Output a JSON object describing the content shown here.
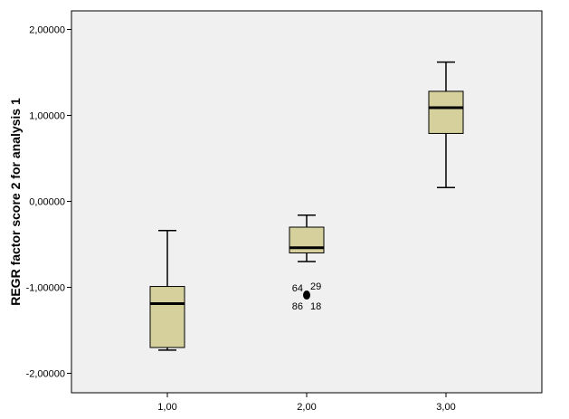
{
  "chart_data": {
    "type": "boxplot",
    "title": "",
    "xlabel": "",
    "ylabel": "REGR factor score   2 for analysis 1",
    "ylim": [
      -2.2,
      2.2
    ],
    "yticks": [
      2,
      1,
      0,
      -1,
      -2
    ],
    "ytick_labels": [
      "2,00000",
      "1,00000",
      "0,00000",
      "-1,00000",
      "-2,00000"
    ],
    "categories": [
      "1,00",
      "2,00",
      "3,00"
    ],
    "boxes": [
      {
        "category": "1,00",
        "whisker_low": -1.73,
        "q1": -1.7,
        "median": -1.19,
        "q3": -0.99,
        "whisker_high": -0.34
      },
      {
        "category": "2,00",
        "whisker_low": -0.7,
        "q1": -0.6,
        "median": -0.54,
        "q3": -0.3,
        "whisker_high": -0.16
      },
      {
        "category": "3,00",
        "whisker_low": 0.16,
        "q1": 0.79,
        "median": 1.09,
        "q3": 1.28,
        "whisker_high": 1.62
      }
    ],
    "outliers": [
      {
        "category": "2,00",
        "value": -1.09,
        "labels": [
          "64",
          "29",
          "86",
          "18"
        ]
      }
    ],
    "grid": false,
    "legend": "none",
    "colors": {
      "box_fill": "#d5d09c",
      "plot_background": "#f0f0f0",
      "line": "#000000"
    }
  }
}
